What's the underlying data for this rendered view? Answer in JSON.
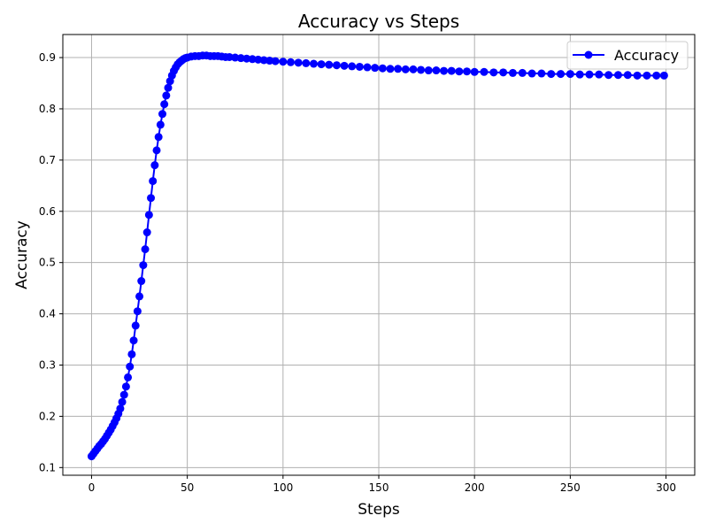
{
  "chart_data": {
    "type": "line",
    "title": "Accuracy vs Steps",
    "xlabel": "Steps",
    "ylabel": "Accuracy",
    "xlim": [
      -15,
      315
    ],
    "ylim": [
      0.085,
      0.945
    ],
    "xticks": [
      0,
      50,
      100,
      150,
      200,
      250,
      300
    ],
    "yticks": [
      0.1,
      0.2,
      0.3,
      0.4,
      0.5,
      0.6,
      0.7,
      0.8,
      0.9
    ],
    "grid": true,
    "legend_position": "top-right",
    "color": "#0000ff",
    "marker": "circle",
    "series": [
      {
        "name": "Accuracy",
        "points": [
          [
            0,
            0.122
          ],
          [
            1,
            0.127
          ],
          [
            2,
            0.132
          ],
          [
            3,
            0.137
          ],
          [
            4,
            0.142
          ],
          [
            5,
            0.146
          ],
          [
            6,
            0.151
          ],
          [
            7,
            0.156
          ],
          [
            8,
            0.162
          ],
          [
            9,
            0.168
          ],
          [
            10,
            0.174
          ],
          [
            11,
            0.181
          ],
          [
            12,
            0.188
          ],
          [
            13,
            0.196
          ],
          [
            14,
            0.205
          ],
          [
            15,
            0.215
          ],
          [
            16,
            0.228
          ],
          [
            17,
            0.242
          ],
          [
            18,
            0.258
          ],
          [
            19,
            0.276
          ],
          [
            20,
            0.297
          ],
          [
            21,
            0.321
          ],
          [
            22,
            0.348
          ],
          [
            23,
            0.377
          ],
          [
            24,
            0.405
          ],
          [
            25,
            0.434
          ],
          [
            26,
            0.464
          ],
          [
            27,
            0.495
          ],
          [
            28,
            0.526
          ],
          [
            29,
            0.559
          ],
          [
            30,
            0.593
          ],
          [
            31,
            0.626
          ],
          [
            32,
            0.659
          ],
          [
            33,
            0.69
          ],
          [
            34,
            0.719
          ],
          [
            35,
            0.745
          ],
          [
            36,
            0.769
          ],
          [
            37,
            0.79
          ],
          [
            38,
            0.809
          ],
          [
            39,
            0.826
          ],
          [
            40,
            0.841
          ],
          [
            41,
            0.854
          ],
          [
            42,
            0.865
          ],
          [
            43,
            0.874
          ],
          [
            44,
            0.881
          ],
          [
            45,
            0.887
          ],
          [
            46,
            0.891
          ],
          [
            47,
            0.894
          ],
          [
            48,
            0.897
          ],
          [
            49,
            0.899
          ],
          [
            50,
            0.9
          ],
          [
            52,
            0.902
          ],
          [
            54,
            0.903
          ],
          [
            56,
            0.903
          ],
          [
            58,
            0.904
          ],
          [
            60,
            0.904
          ],
          [
            62,
            0.903
          ],
          [
            64,
            0.903
          ],
          [
            66,
            0.903
          ],
          [
            68,
            0.902
          ],
          [
            70,
            0.901
          ],
          [
            72,
            0.901
          ],
          [
            75,
            0.9
          ],
          [
            78,
            0.899
          ],
          [
            81,
            0.898
          ],
          [
            84,
            0.897
          ],
          [
            87,
            0.896
          ],
          [
            90,
            0.895
          ],
          [
            93,
            0.894
          ],
          [
            96,
            0.893
          ],
          [
            100,
            0.892
          ],
          [
            104,
            0.891
          ],
          [
            108,
            0.89
          ],
          [
            112,
            0.889
          ],
          [
            116,
            0.888
          ],
          [
            120,
            0.887
          ],
          [
            124,
            0.886
          ],
          [
            128,
            0.885
          ],
          [
            132,
            0.884
          ],
          [
            136,
            0.883
          ],
          [
            140,
            0.882
          ],
          [
            144,
            0.881
          ],
          [
            148,
            0.88
          ],
          [
            152,
            0.879
          ],
          [
            156,
            0.878
          ],
          [
            160,
            0.878
          ],
          [
            164,
            0.877
          ],
          [
            168,
            0.877
          ],
          [
            172,
            0.876
          ],
          [
            176,
            0.875
          ],
          [
            180,
            0.875
          ],
          [
            184,
            0.874
          ],
          [
            188,
            0.874
          ],
          [
            192,
            0.873
          ],
          [
            196,
            0.873
          ],
          [
            200,
            0.872
          ],
          [
            205,
            0.872
          ],
          [
            210,
            0.871
          ],
          [
            215,
            0.871
          ],
          [
            220,
            0.87
          ],
          [
            225,
            0.87
          ],
          [
            230,
            0.869
          ],
          [
            235,
            0.869
          ],
          [
            240,
            0.868
          ],
          [
            245,
            0.868
          ],
          [
            250,
            0.868
          ],
          [
            255,
            0.867
          ],
          [
            260,
            0.867
          ],
          [
            265,
            0.867
          ],
          [
            270,
            0.866
          ],
          [
            275,
            0.866
          ],
          [
            280,
            0.866
          ],
          [
            285,
            0.865
          ],
          [
            290,
            0.865
          ],
          [
            295,
            0.865
          ],
          [
            299,
            0.865
          ]
        ]
      }
    ]
  }
}
